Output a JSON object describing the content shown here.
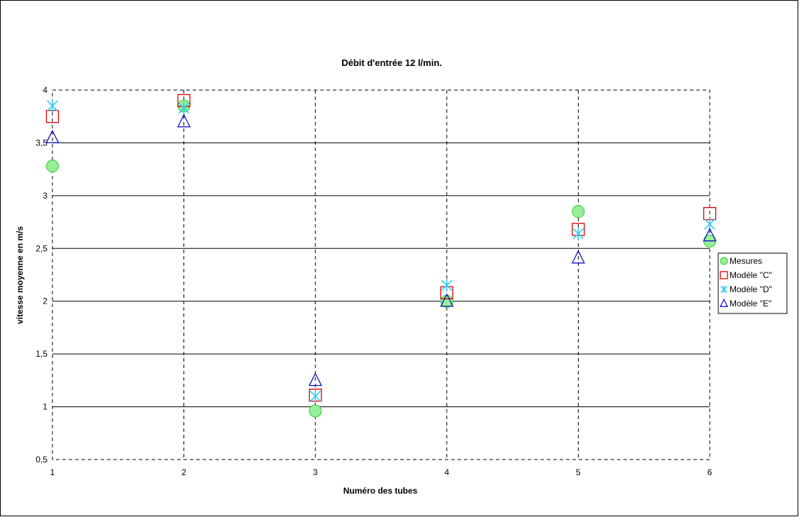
{
  "chart_data": {
    "type": "scatter",
    "title": "Débit d'entrée 12 l/min.",
    "xlabel": "Numéro des tubes",
    "ylabel": "vitesse moyenne en m/s",
    "xlim": [
      1,
      6
    ],
    "ylim": [
      0.5,
      4
    ],
    "x_ticks": [
      "1",
      "2",
      "3",
      "4",
      "5",
      "6"
    ],
    "y_ticks": [
      "0,5",
      "1",
      "1,5",
      "2",
      "2,5",
      "3",
      "3,5",
      "4"
    ],
    "grid": {
      "horizontal": "solid",
      "vertical": "dashed"
    },
    "legend_position": "right",
    "series": [
      {
        "name": "Mesures",
        "marker": "circle",
        "color": "#33cc33",
        "fill": "#99ee99",
        "x": [
          1,
          2,
          3,
          4,
          5,
          6
        ],
        "y": [
          3.28,
          3.85,
          0.96,
          2.0,
          2.85,
          2.57
        ]
      },
      {
        "name": "Modèle \"C\"",
        "marker": "square",
        "color": "#dd0000",
        "x": [
          1,
          2,
          3,
          4,
          5,
          6
        ],
        "y": [
          3.75,
          3.9,
          1.11,
          2.08,
          2.68,
          2.83
        ]
      },
      {
        "name": "Modèle \"D\"",
        "marker": "asterisk",
        "color": "#33ccee",
        "x": [
          1,
          2,
          3,
          4,
          5,
          6
        ],
        "y": [
          3.85,
          3.83,
          1.1,
          2.15,
          2.64,
          2.73
        ]
      },
      {
        "name": "Modèle \"E\"",
        "marker": "triangle",
        "color": "#0000cc",
        "x": [
          1,
          2,
          3,
          4,
          5,
          6
        ],
        "y": [
          3.55,
          3.7,
          1.25,
          2.0,
          2.41,
          2.62
        ]
      }
    ]
  }
}
